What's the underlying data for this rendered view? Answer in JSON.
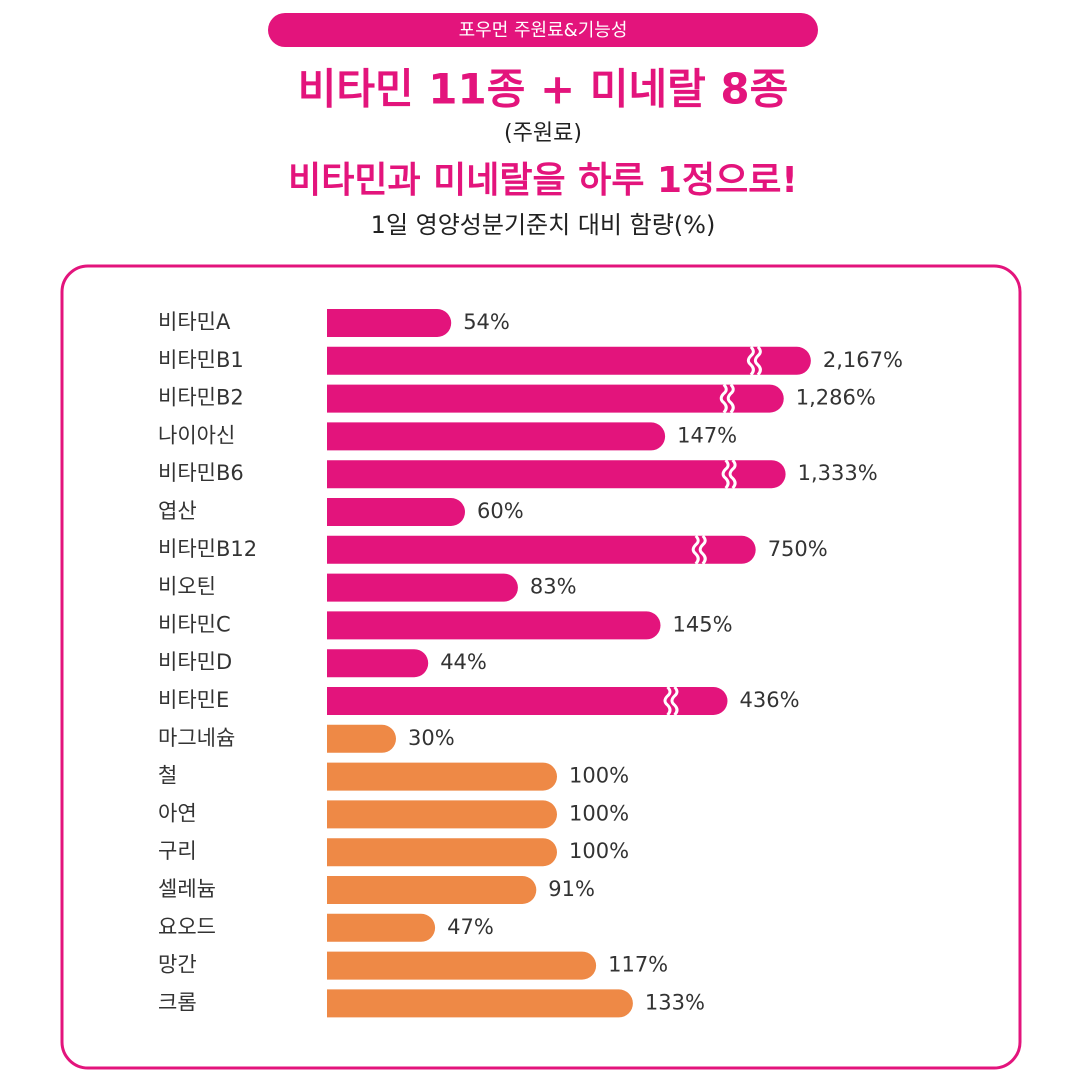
{
  "header": {
    "badge": "포우먼 주원료&기능성",
    "title": "비타민 11종 + 미네랄 8종",
    "note": "(주원료)",
    "headline": "비타민과 미네랄을 하루 1정으로!"
  },
  "chart_data": {
    "type": "bar",
    "orientation": "horizontal",
    "broken_axis": true,
    "title": "1일 영양성분기준치 대비 함량(%)",
    "categories": [
      "비타민A",
      "비타민B1",
      "비타민B2",
      "나이아신",
      "비타민B6",
      "엽산",
      "비타민B12",
      "비오틴",
      "비타민C",
      "비타민D",
      "비타민E",
      "마그네슘",
      "철",
      "아연",
      "구리",
      "셀레늄",
      "요오드",
      "망간",
      "크롬"
    ],
    "values": [
      54,
      2167,
      1286,
      147,
      1333,
      60,
      750,
      83,
      145,
      44,
      436,
      30,
      100,
      100,
      100,
      91,
      47,
      117,
      133
    ],
    "value_labels": [
      "54%",
      "2,167%",
      "1,286%",
      "147%",
      "1,333%",
      "60%",
      "750%",
      "83%",
      "145%",
      "44%",
      "436%",
      "30%",
      "100%",
      "100%",
      "100%",
      "91%",
      "47%",
      "117%",
      "133%"
    ],
    "colors": [
      "#e3147c",
      "#e3147c",
      "#e3147c",
      "#e3147c",
      "#e3147c",
      "#e3147c",
      "#e3147c",
      "#e3147c",
      "#e3147c",
      "#e3147c",
      "#e3147c",
      "#ee8946",
      "#ee8946",
      "#ee8946",
      "#ee8946",
      "#ee8946",
      "#ee8946",
      "#ee8946",
      "#ee8946"
    ]
  }
}
